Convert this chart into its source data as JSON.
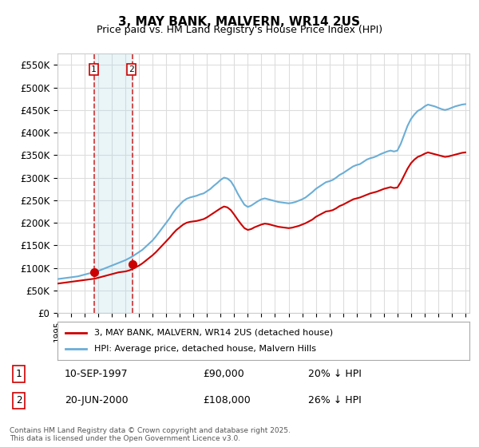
{
  "title": "3, MAY BANK, MALVERN, WR14 2US",
  "subtitle": "Price paid vs. HM Land Registry's House Price Index (HPI)",
  "hpi_label": "HPI: Average price, detached house, Malvern Hills",
  "property_label": "3, MAY BANK, MALVERN, WR14 2US (detached house)",
  "hpi_color": "#6baed6",
  "property_color": "#cc0000",
  "annotation_color": "#cc0000",
  "purchase1_date": "10-SEP-1997",
  "purchase1_price": 90000,
  "purchase1_hpi": "20% ↓ HPI",
  "purchase2_date": "20-JUN-2000",
  "purchase2_price": 108000,
  "purchase2_hpi": "26% ↓ HPI",
  "purchase1_year": 1997.7,
  "purchase2_year": 2000.5,
  "ylim": [
    0,
    575000
  ],
  "yticks": [
    0,
    50000,
    100000,
    150000,
    200000,
    250000,
    300000,
    350000,
    400000,
    450000,
    500000,
    550000
  ],
  "copyright": "Contains HM Land Registry data © Crown copyright and database right 2025.\nThis data is licensed under the Open Government Licence v3.0.",
  "background_color": "#ffffff",
  "grid_color": "#dddddd",
  "hpi_years": [
    1995,
    1995.25,
    1995.5,
    1995.75,
    1996,
    1996.25,
    1996.5,
    1996.75,
    1997,
    1997.25,
    1997.5,
    1997.75,
    1998,
    1998.25,
    1998.5,
    1998.75,
    1999,
    1999.25,
    1999.5,
    1999.75,
    2000,
    2000.25,
    2000.5,
    2000.75,
    2001,
    2001.25,
    2001.5,
    2001.75,
    2002,
    2002.25,
    2002.5,
    2002.75,
    2003,
    2003.25,
    2003.5,
    2003.75,
    2004,
    2004.25,
    2004.5,
    2004.75,
    2005,
    2005.25,
    2005.5,
    2005.75,
    2006,
    2006.25,
    2006.5,
    2006.75,
    2007,
    2007.25,
    2007.5,
    2007.75,
    2008,
    2008.25,
    2008.5,
    2008.75,
    2009,
    2009.25,
    2009.5,
    2009.75,
    2010,
    2010.25,
    2010.5,
    2010.75,
    2011,
    2011.25,
    2011.5,
    2011.75,
    2012,
    2012.25,
    2012.5,
    2012.75,
    2013,
    2013.25,
    2013.5,
    2013.75,
    2014,
    2014.25,
    2014.5,
    2014.75,
    2015,
    2015.25,
    2015.5,
    2015.75,
    2016,
    2016.25,
    2016.5,
    2016.75,
    2017,
    2017.25,
    2017.5,
    2017.75,
    2018,
    2018.25,
    2018.5,
    2018.75,
    2019,
    2019.25,
    2019.5,
    2019.75,
    2020,
    2020.25,
    2020.5,
    2020.75,
    2021,
    2021.25,
    2021.5,
    2021.75,
    2022,
    2022.25,
    2022.5,
    2022.75,
    2023,
    2023.25,
    2023.5,
    2023.75,
    2024,
    2024.25,
    2024.5,
    2024.75,
    2025
  ],
  "hpi_values": [
    75000,
    76000,
    77000,
    78000,
    79000,
    80000,
    81000,
    83000,
    85000,
    87000,
    89000,
    91000,
    93000,
    96000,
    99000,
    102000,
    105000,
    108000,
    111000,
    114000,
    117000,
    121000,
    125000,
    130000,
    135000,
    140000,
    147000,
    154000,
    161000,
    170000,
    180000,
    190000,
    200000,
    210000,
    222000,
    232000,
    240000,
    248000,
    253000,
    256000,
    258000,
    260000,
    263000,
    265000,
    270000,
    275000,
    282000,
    288000,
    295000,
    300000,
    298000,
    292000,
    280000,
    265000,
    252000,
    240000,
    235000,
    238000,
    243000,
    248000,
    252000,
    254000,
    252000,
    250000,
    248000,
    246000,
    245000,
    244000,
    243000,
    244000,
    246000,
    249000,
    252000,
    256000,
    262000,
    268000,
    275000,
    280000,
    285000,
    290000,
    292000,
    295000,
    300000,
    306000,
    310000,
    315000,
    320000,
    325000,
    328000,
    330000,
    335000,
    340000,
    343000,
    345000,
    348000,
    352000,
    355000,
    358000,
    360000,
    358000,
    360000,
    375000,
    395000,
    415000,
    430000,
    440000,
    448000,
    452000,
    458000,
    462000,
    460000,
    458000,
    455000,
    452000,
    450000,
    452000,
    455000,
    458000,
    460000,
    462000,
    463000
  ],
  "prop_years": [
    1995,
    1995.25,
    1995.5,
    1995.75,
    1996,
    1996.25,
    1996.5,
    1996.75,
    1997,
    1997.25,
    1997.5,
    1997.75,
    1998,
    1998.25,
    1998.5,
    1998.75,
    1999,
    1999.25,
    1999.5,
    1999.75,
    2000,
    2000.25,
    2000.5,
    2000.75,
    2001,
    2001.25,
    2001.5,
    2001.75,
    2002,
    2002.25,
    2002.5,
    2002.75,
    2003,
    2003.25,
    2003.5,
    2003.75,
    2004,
    2004.25,
    2004.5,
    2004.75,
    2005,
    2005.25,
    2005.5,
    2005.75,
    2006,
    2006.25,
    2006.5,
    2006.75,
    2007,
    2007.25,
    2007.5,
    2007.75,
    2008,
    2008.25,
    2008.5,
    2008.75,
    2009,
    2009.25,
    2009.5,
    2009.75,
    2010,
    2010.25,
    2010.5,
    2010.75,
    2011,
    2011.25,
    2011.5,
    2011.75,
    2012,
    2012.25,
    2012.5,
    2012.75,
    2013,
    2013.25,
    2013.5,
    2013.75,
    2014,
    2014.25,
    2014.5,
    2014.75,
    2015,
    2015.25,
    2015.5,
    2015.75,
    2016,
    2016.25,
    2016.5,
    2016.75,
    2017,
    2017.25,
    2017.5,
    2017.75,
    2018,
    2018.25,
    2018.5,
    2018.75,
    2019,
    2019.25,
    2019.5,
    2019.75,
    2020,
    2020.25,
    2020.5,
    2020.75,
    2021,
    2021.25,
    2021.5,
    2021.75,
    2022,
    2022.25,
    2022.5,
    2022.75,
    2023,
    2023.25,
    2023.5,
    2023.75,
    2024,
    2024.25,
    2024.5,
    2024.75,
    2025
  ],
  "prop_values": [
    65000,
    66000,
    67000,
    68000,
    69000,
    70000,
    71000,
    72000,
    73000,
    74000,
    75000,
    76000,
    78000,
    80000,
    82000,
    84000,
    86000,
    88000,
    90000,
    91000,
    92000,
    94000,
    97000,
    101000,
    105000,
    110000,
    116000,
    122000,
    128000,
    135000,
    143000,
    151000,
    159000,
    167000,
    176000,
    184000,
    190000,
    196000,
    200000,
    202000,
    203000,
    204000,
    206000,
    208000,
    212000,
    217000,
    222000,
    227000,
    232000,
    236000,
    234000,
    228000,
    218000,
    207000,
    197000,
    188000,
    184000,
    186000,
    190000,
    193000,
    196000,
    198000,
    197000,
    195000,
    193000,
    191000,
    190000,
    189000,
    188000,
    189000,
    191000,
    193000,
    196000,
    199000,
    203000,
    207000,
    213000,
    217000,
    221000,
    225000,
    226000,
    228000,
    232000,
    237000,
    240000,
    244000,
    248000,
    252000,
    254000,
    256000,
    259000,
    262000,
    265000,
    267000,
    269000,
    272000,
    275000,
    277000,
    279000,
    277000,
    278000,
    290000,
    305000,
    320000,
    332000,
    340000,
    346000,
    349000,
    353000,
    356000,
    354000,
    352000,
    350000,
    348000,
    346000,
    347000,
    349000,
    351000,
    353000,
    355000,
    356000
  ],
  "xlim": [
    1995,
    2025.3
  ]
}
